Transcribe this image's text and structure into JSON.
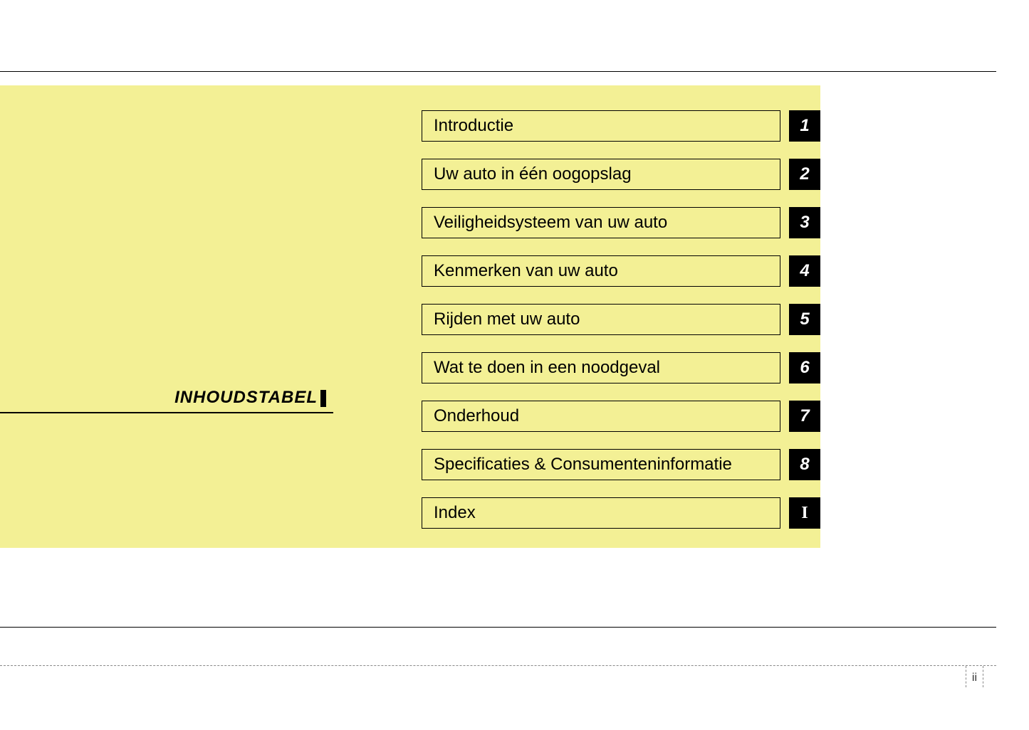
{
  "title": "INHOUDSTABEL",
  "background_color": "#f3f095",
  "border_color": "#000000",
  "number_bg": "#000000",
  "number_fg": "#ffffff",
  "page_number": "ii",
  "toc": [
    {
      "label": "Introductie",
      "num": "1",
      "serif": false
    },
    {
      "label": "Uw auto in één oogopslag",
      "num": "2",
      "serif": false
    },
    {
      "label": "Veiligheidsysteem van uw auto",
      "num": "3",
      "serif": false
    },
    {
      "label": "Kenmerken van uw auto",
      "num": "4",
      "serif": false
    },
    {
      "label": "Rijden met uw auto",
      "num": "5",
      "serif": false
    },
    {
      "label": "Wat te doen in een noodgeval",
      "num": "6",
      "serif": false
    },
    {
      "label": "Onderhoud",
      "num": "7",
      "serif": false
    },
    {
      "label": "Specificaties & Consumenteninformatie",
      "num": "8",
      "serif": false
    },
    {
      "label": "Index",
      "num": "I",
      "serif": true
    }
  ]
}
